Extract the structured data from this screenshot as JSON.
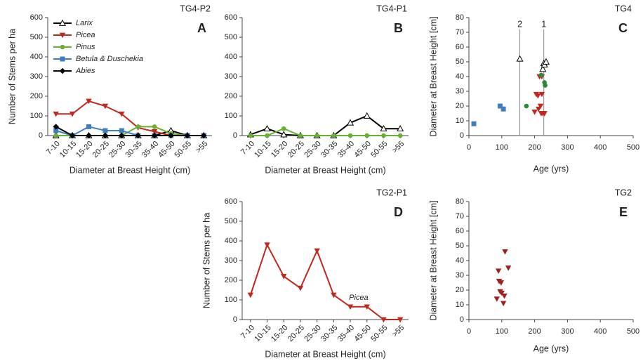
{
  "chart_data": [
    {
      "type": "line",
      "title": "TG4-P2",
      "panel": "A",
      "xlabel": "Diameter at Breast Height (cm)",
      "ylabel": "Number of Stems per ha",
      "categories": [
        "7-10",
        "10-15",
        "15-20",
        "20-25",
        "25-30",
        "30-35",
        "35-40",
        "45-50",
        "50-55",
        ">55"
      ],
      "ylim": [
        0,
        600
      ],
      "yticks": [
        0,
        100,
        200,
        300,
        400,
        500,
        600
      ],
      "legend": "upper left",
      "series": [
        {
          "name": "Larix",
          "color": "#000000",
          "marker": "triangle-open",
          "values": [
            0,
            0,
            0,
            0,
            0,
            0,
            0,
            25,
            0,
            0
          ]
        },
        {
          "name": "Picea",
          "color": "#c0281e",
          "marker": "triangle-down",
          "values": [
            110,
            110,
            175,
            150,
            110,
            40,
            20,
            0,
            0,
            0
          ]
        },
        {
          "name": "Pinus",
          "color": "#66b032",
          "marker": "circle",
          "values": [
            0,
            0,
            0,
            0,
            0,
            45,
            45,
            10,
            0,
            0
          ]
        },
        {
          "name": "Betula & Duschekia",
          "color": "#3f7fc0",
          "marker": "square",
          "values": [
            25,
            0,
            45,
            25,
            25,
            0,
            0,
            0,
            0,
            0
          ]
        },
        {
          "name": "Abies",
          "color": "#000000",
          "marker": "diamond",
          "values": [
            45,
            0,
            0,
            0,
            0,
            0,
            0,
            0,
            0,
            0
          ]
        }
      ]
    },
    {
      "type": "line",
      "title": "TG4-P1",
      "panel": "B",
      "xlabel": "Diameter at Breast Height (cm)",
      "categories": [
        "7-10",
        "10-15",
        "15-20",
        "20-25",
        "25-30",
        "30-35",
        "35-40",
        "45-50",
        "50-55",
        ">55"
      ],
      "ylim": [
        0,
        600
      ],
      "yticks": [
        0,
        100,
        200,
        300,
        400,
        500,
        600
      ],
      "series": [
        {
          "color": "#000000",
          "marker": "triangle-open",
          "values": [
            5,
            35,
            5,
            0,
            0,
            0,
            65,
            100,
            35,
            35
          ]
        },
        {
          "color": "#66b032",
          "marker": "circle",
          "values": [
            0,
            0,
            35,
            0,
            0,
            0,
            0,
            0,
            0,
            0
          ]
        }
      ]
    },
    {
      "type": "scatter",
      "title": "TG4",
      "panel": "C",
      "xlabel": "Age (yrs)",
      "ylabel": "Diameter at Breast Height [cm]",
      "xlim": [
        0,
        500
      ],
      "xticks": [
        0,
        100,
        200,
        300,
        400,
        500
      ],
      "ylim": [
        0,
        80
      ],
      "yticks": [
        0,
        10,
        20,
        30,
        40,
        50,
        60,
        70,
        80
      ],
      "reference_lines": [
        {
          "x": 155,
          "label": "2"
        },
        {
          "x": 228,
          "label": "1"
        }
      ],
      "series": [
        {
          "color": "#000000",
          "marker": "triangle-open",
          "x": [
            155,
            225,
            228,
            230,
            235
          ],
          "y": [
            52,
            45,
            49,
            48,
            50
          ]
        },
        {
          "color": "#c0281e",
          "marker": "triangle-down",
          "x": [
            200,
            205,
            210,
            212,
            215,
            218,
            220,
            222,
            225,
            230,
            222
          ],
          "y": [
            16,
            28,
            27,
            18,
            40,
            20,
            15,
            28,
            15,
            15,
            40
          ]
        },
        {
          "color": "#2a8a3a",
          "marker": "circle",
          "x": [
            175,
            220,
            230,
            232
          ],
          "y": [
            20,
            41,
            36,
            34
          ]
        },
        {
          "color": "#3f7fc0",
          "marker": "square",
          "x": [
            15,
            95,
            105
          ],
          "y": [
            8,
            20,
            18
          ]
        }
      ]
    },
    {
      "type": "line",
      "title": "TG2-P1",
      "panel": "D",
      "xlabel": "Diameter at Breast Height (cm)",
      "ylabel": "Number of Stems per ha",
      "annotation": "Picea",
      "categories": [
        "7-10",
        "10-15",
        "15-20",
        "20-25",
        "25-30",
        "30-35",
        "35-40",
        "45-50",
        "50-55",
        ">55"
      ],
      "ylim": [
        0,
        600
      ],
      "yticks": [
        0,
        100,
        200,
        300,
        400,
        500,
        600
      ],
      "series": [
        {
          "color": "#c0281e",
          "marker": "triangle-down",
          "values": [
            125,
            380,
            220,
            160,
            350,
            125,
            65,
            65,
            0,
            0
          ]
        }
      ]
    },
    {
      "type": "scatter",
      "title": "TG2",
      "panel": "E",
      "xlabel": "Age (yrs)",
      "ylabel": "Diameter at Breast Height [cm]",
      "xlim": [
        0,
        500
      ],
      "xticks": [
        0,
        100,
        200,
        300,
        400,
        500
      ],
      "ylim": [
        0,
        80
      ],
      "yticks": [
        0,
        10,
        20,
        30,
        40,
        50,
        60,
        70,
        80
      ],
      "series": [
        {
          "color": "#a02020",
          "marker": "triangle-down",
          "x": [
            85,
            90,
            92,
            95,
            98,
            100,
            105,
            108,
            110,
            120
          ],
          "y": [
            14,
            33,
            26,
            19,
            25,
            18,
            11,
            16,
            46,
            35
          ]
        }
      ]
    }
  ]
}
